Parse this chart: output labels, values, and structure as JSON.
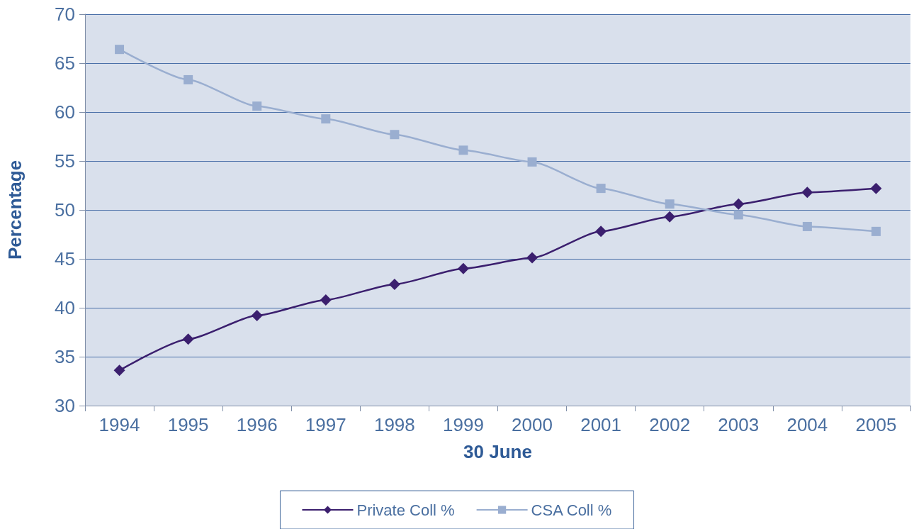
{
  "chart_data": {
    "type": "line",
    "xlabel": "30 June",
    "ylabel": "Percentage",
    "categories": [
      "1994",
      "1995",
      "1996",
      "1997",
      "1998",
      "1999",
      "2000",
      "2001",
      "2002",
      "2003",
      "2004",
      "2005"
    ],
    "series": [
      {
        "name": "Private Coll %",
        "color": "#3b1f6e",
        "marker": "diamond",
        "values": [
          33.6,
          36.8,
          39.2,
          40.8,
          42.4,
          44.0,
          45.1,
          47.8,
          49.3,
          50.6,
          51.8,
          52.2
        ]
      },
      {
        "name": "CSA Coll %",
        "color": "#9aaed0",
        "marker": "square",
        "values": [
          66.4,
          63.3,
          60.6,
          59.3,
          57.7,
          56.1,
          54.9,
          52.2,
          50.6,
          49.5,
          48.3,
          47.8
        ]
      }
    ],
    "ylim": [
      30,
      70
    ],
    "yticks": [
      30,
      35,
      40,
      45,
      50,
      55,
      60,
      65,
      70
    ],
    "grid": "y",
    "legend": "bottom",
    "line_style": "solid"
  }
}
